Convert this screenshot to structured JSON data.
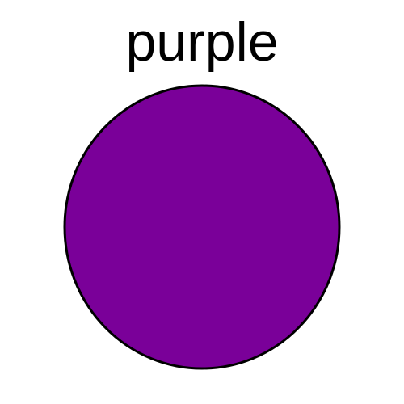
{
  "label": {
    "text": "purple"
  },
  "shape": {
    "type": "circle",
    "fill_color": "#7A0099",
    "stroke_color": "#000000"
  }
}
